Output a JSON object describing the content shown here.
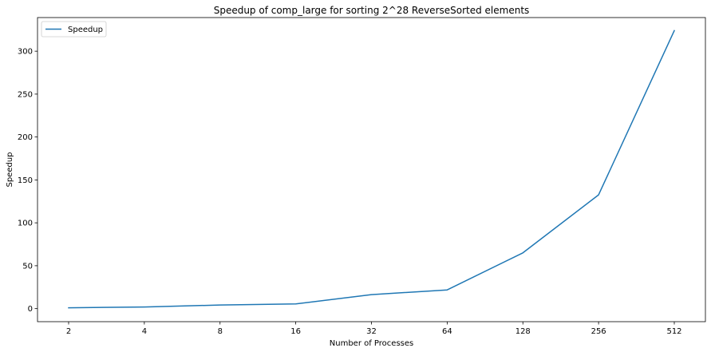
{
  "chart_data": {
    "type": "line",
    "title": "Speedup of comp_large for sorting 2^28 ReverseSorted elements",
    "xlabel": "Number of Processes",
    "ylabel": "Speedup",
    "categories": [
      "2",
      "4",
      "8",
      "16",
      "32",
      "64",
      "128",
      "256",
      "512"
    ],
    "series": [
      {
        "name": "Speedup",
        "color": "#1f77b4",
        "values": [
          1.0,
          1.9,
          4.2,
          5.5,
          16.3,
          21.8,
          65.0,
          132.6,
          324.0
        ]
      }
    ],
    "yticks": [
      0,
      50,
      100,
      150,
      200,
      250,
      300
    ],
    "ylim": [
      -15.2,
      339.2
    ],
    "grid": false,
    "legend_position": "top-left"
  }
}
